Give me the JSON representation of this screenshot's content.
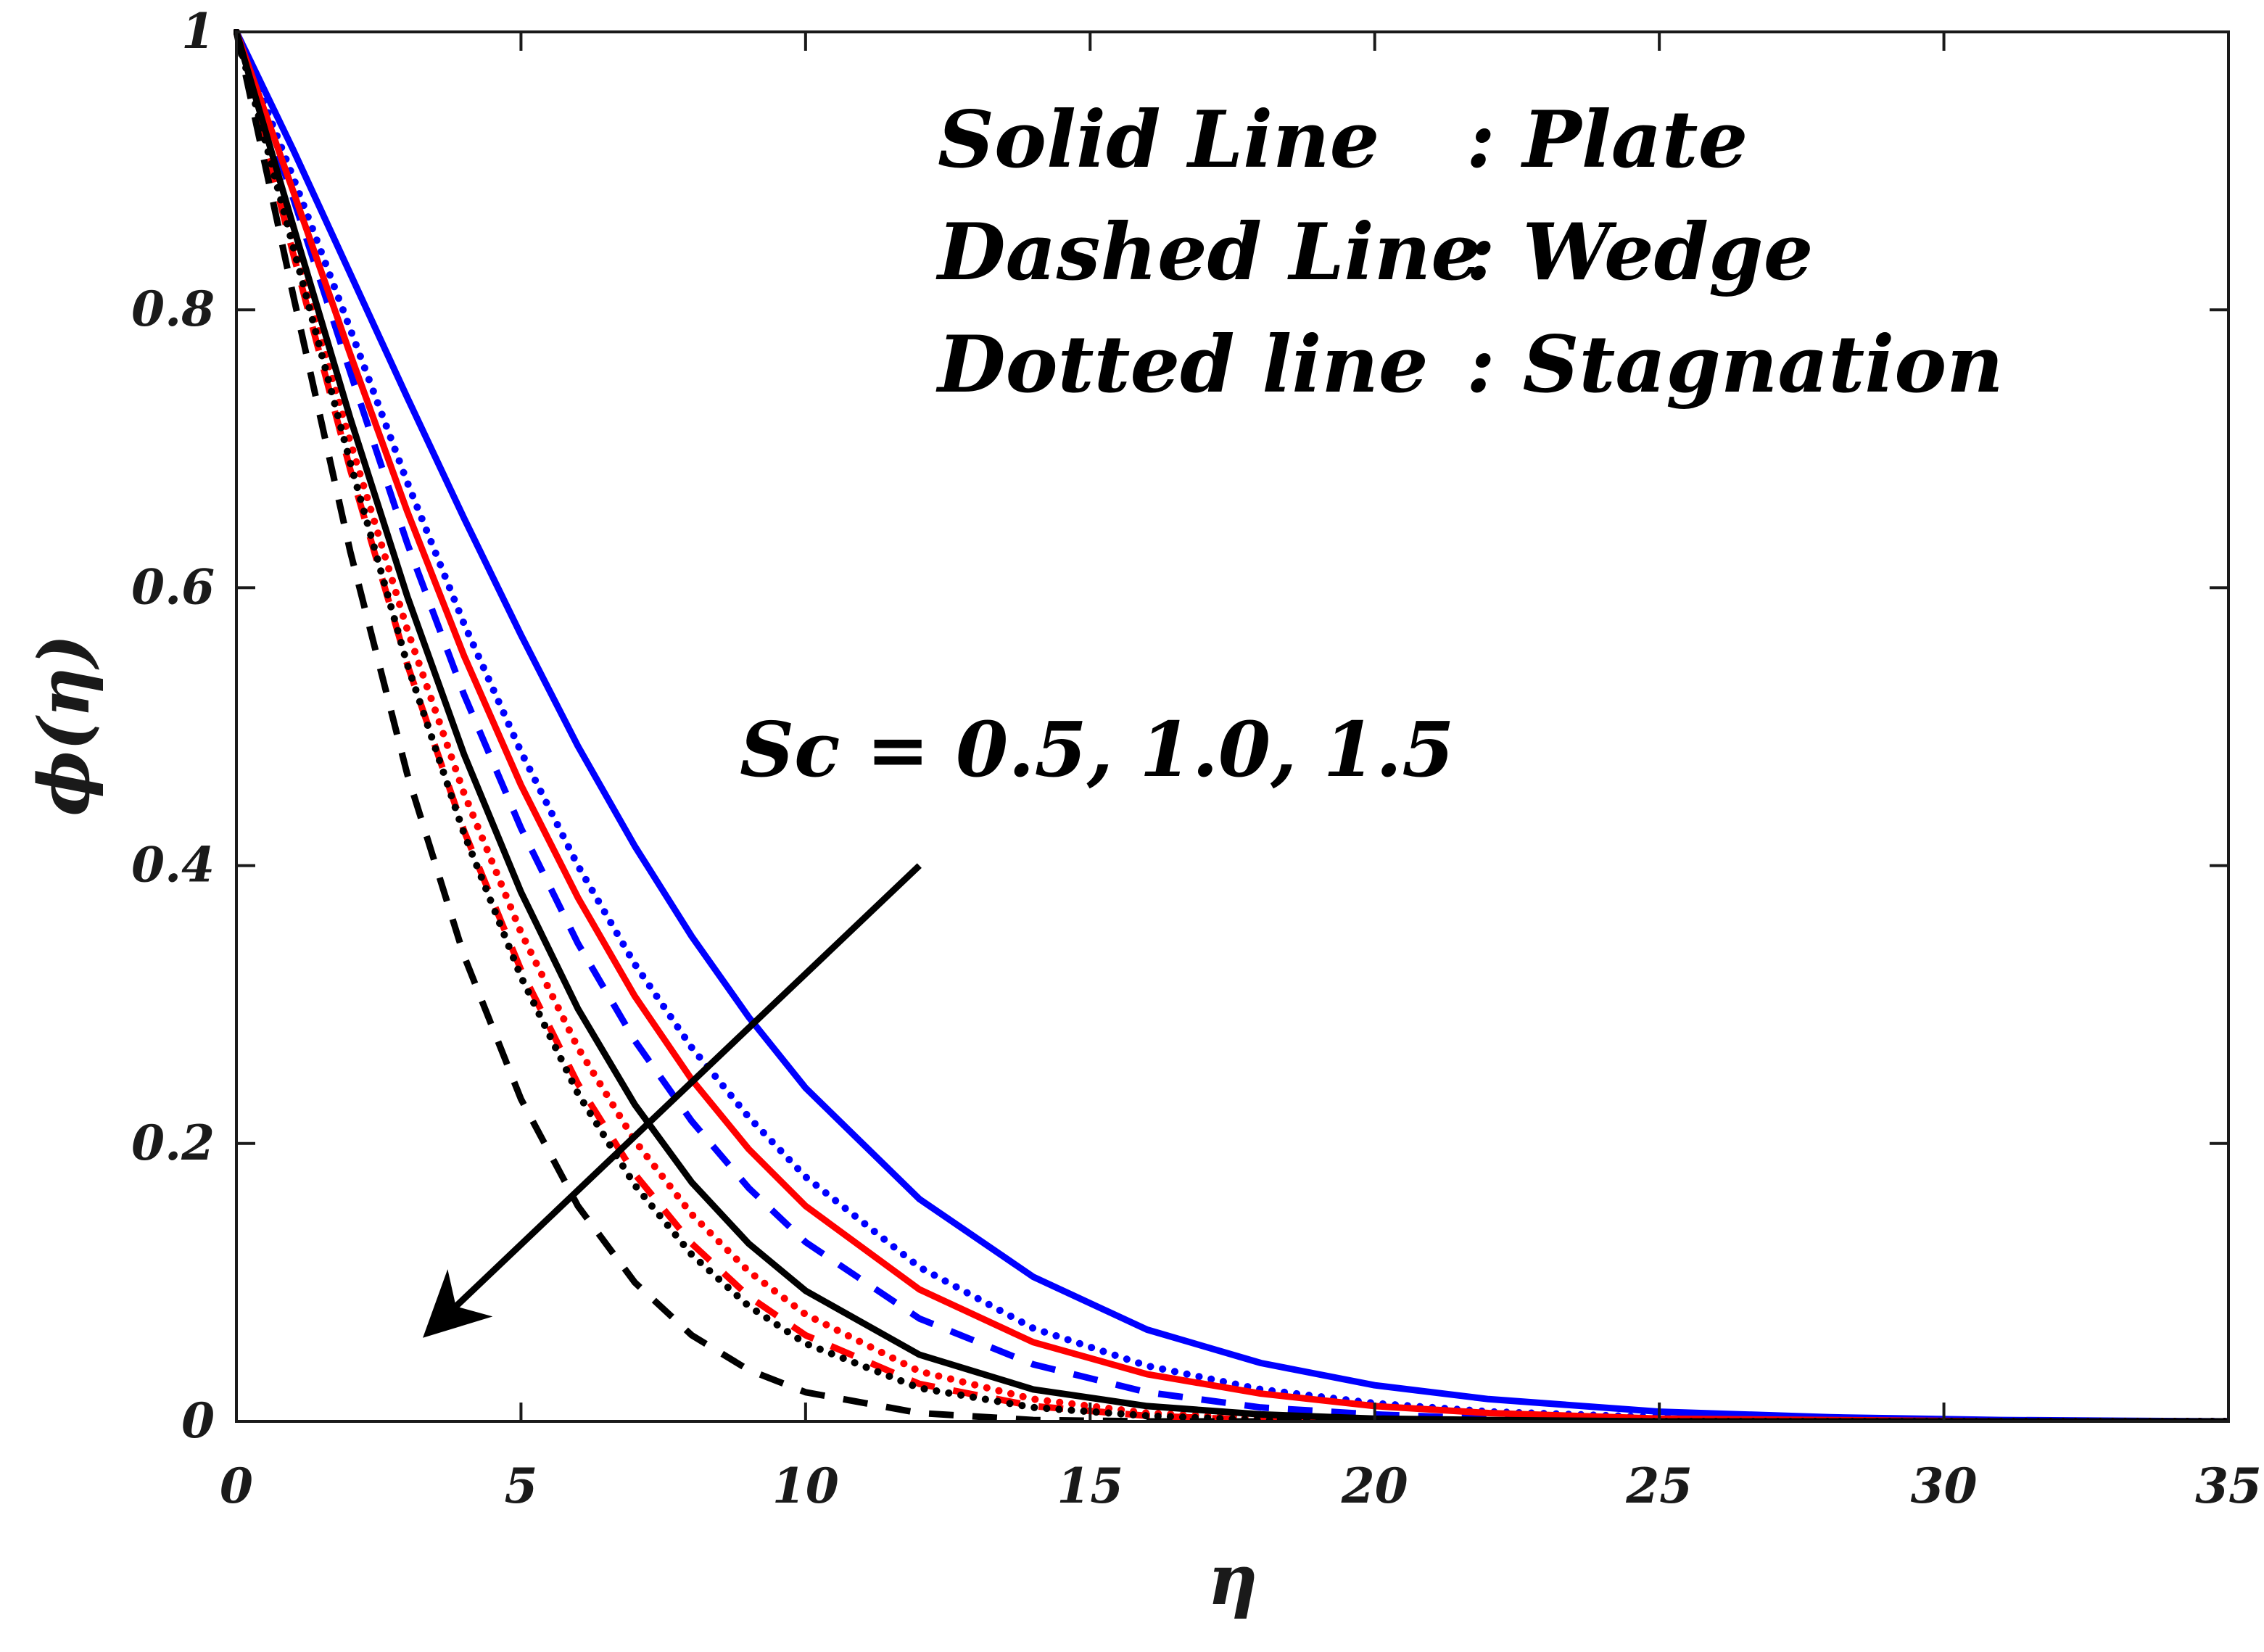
{
  "chart_data": {
    "type": "line",
    "title": "",
    "xlabel": "η",
    "ylabel": "ϕ(η)",
    "xlim": [
      0,
      35
    ],
    "ylim": [
      0,
      1
    ],
    "xticks": [
      0,
      5,
      10,
      15,
      20,
      25,
      30,
      35
    ],
    "yticks": [
      0,
      0.2,
      0.4,
      0.6,
      0.8,
      1
    ],
    "ytick_labels": [
      "0",
      "0.2",
      "0.4",
      "0.6",
      "0.8",
      "1"
    ],
    "grid": false,
    "legend_lines": [
      {
        "line": "Solid Line",
        "meaning": ": Plate"
      },
      {
        "line": "Dashed Line",
        "meaning": ": Wedge"
      },
      {
        "line": "Dotted line",
        "meaning": ": Stagnation"
      }
    ],
    "annotation": {
      "text": "Sc = 0.5, 1.0, 1.5",
      "arrow_from": [
        12,
        0.4
      ],
      "arrow_to": [
        3.4,
        0.065
      ]
    },
    "x": [
      0,
      1,
      2,
      3,
      4,
      5,
      6,
      7,
      8,
      9,
      10,
      12,
      14,
      16,
      18,
      20,
      22,
      25,
      28,
      31,
      35
    ],
    "series": [
      {
        "name": "Plate, Sc = 0.5",
        "style": "solid",
        "color": "#0000ff",
        "values": [
          1.0,
          0.915,
          0.826,
          0.737,
          0.65,
          0.566,
          0.486,
          0.414,
          0.349,
          0.291,
          0.24,
          0.16,
          0.104,
          0.066,
          0.042,
          0.026,
          0.016,
          0.007,
          0.003,
          0.001,
          0.0
        ]
      },
      {
        "name": "Stagnation, Sc = 0.5",
        "style": "dotted",
        "color": "#0000ff",
        "values": [
          1.0,
          0.895,
          0.786,
          0.676,
          0.574,
          0.482,
          0.4,
          0.329,
          0.269,
          0.219,
          0.176,
          0.111,
          0.067,
          0.04,
          0.023,
          0.013,
          0.007,
          0.003,
          0.001,
          0.0,
          0.0
        ]
      },
      {
        "name": "Wedge, Sc = 0.5",
        "style": "dashed",
        "color": "#0000ff",
        "values": [
          1.0,
          0.88,
          0.755,
          0.632,
          0.523,
          0.427,
          0.344,
          0.274,
          0.216,
          0.168,
          0.129,
          0.074,
          0.041,
          0.021,
          0.01,
          0.005,
          0.002,
          0.001,
          0.0,
          0.0,
          0.0
        ]
      },
      {
        "name": "Plate, Sc = 1.0",
        "style": "solid",
        "color": "#ff0000",
        "values": [
          1.0,
          0.885,
          0.768,
          0.655,
          0.551,
          0.458,
          0.377,
          0.306,
          0.246,
          0.196,
          0.155,
          0.095,
          0.057,
          0.034,
          0.02,
          0.011,
          0.006,
          0.002,
          0.001,
          0.0,
          0.0
        ]
      },
      {
        "name": "Stagnation, Sc = 1.0",
        "style": "dotted",
        "color": "#ff0000",
        "values": [
          1.0,
          0.85,
          0.705,
          0.57,
          0.452,
          0.352,
          0.269,
          0.202,
          0.149,
          0.108,
          0.077,
          0.036,
          0.016,
          0.006,
          0.002,
          0.001,
          0.0,
          0.0,
          0.0,
          0.0,
          0.0
        ]
      },
      {
        "name": "Wedge, Sc = 1.0",
        "style": "dashed",
        "color": "#ff0000",
        "values": [
          1.0,
          0.84,
          0.685,
          0.545,
          0.425,
          0.325,
          0.243,
          0.178,
          0.128,
          0.09,
          0.062,
          0.027,
          0.011,
          0.004,
          0.001,
          0.0,
          0.0,
          0.0,
          0.0,
          0.0,
          0.0
        ]
      },
      {
        "name": "Plate, Sc = 1.5",
        "style": "solid",
        "color": "#000000",
        "values": [
          1.0,
          0.86,
          0.722,
          0.594,
          0.48,
          0.381,
          0.297,
          0.228,
          0.172,
          0.128,
          0.094,
          0.048,
          0.023,
          0.011,
          0.005,
          0.002,
          0.001,
          0.0,
          0.0,
          0.0,
          0.0
        ]
      },
      {
        "name": "Stagnation, Sc = 1.5",
        "style": "dotted",
        "color": "#000000",
        "values": [
          1.0,
          0.845,
          0.69,
          0.545,
          0.423,
          0.32,
          0.236,
          0.17,
          0.12,
          0.083,
          0.056,
          0.024,
          0.01,
          0.004,
          0.001,
          0.0,
          0.0,
          0.0,
          0.0,
          0.0,
          0.0
        ]
      },
      {
        "name": "Wedge, Sc = 1.5",
        "style": "dashed",
        "color": "#000000",
        "values": [
          1.0,
          0.81,
          0.626,
          0.466,
          0.335,
          0.232,
          0.155,
          0.1,
          0.062,
          0.037,
          0.021,
          0.006,
          0.001,
          0.0,
          0.0,
          0.0,
          0.0,
          0.0,
          0.0,
          0.0,
          0.0
        ]
      }
    ]
  }
}
